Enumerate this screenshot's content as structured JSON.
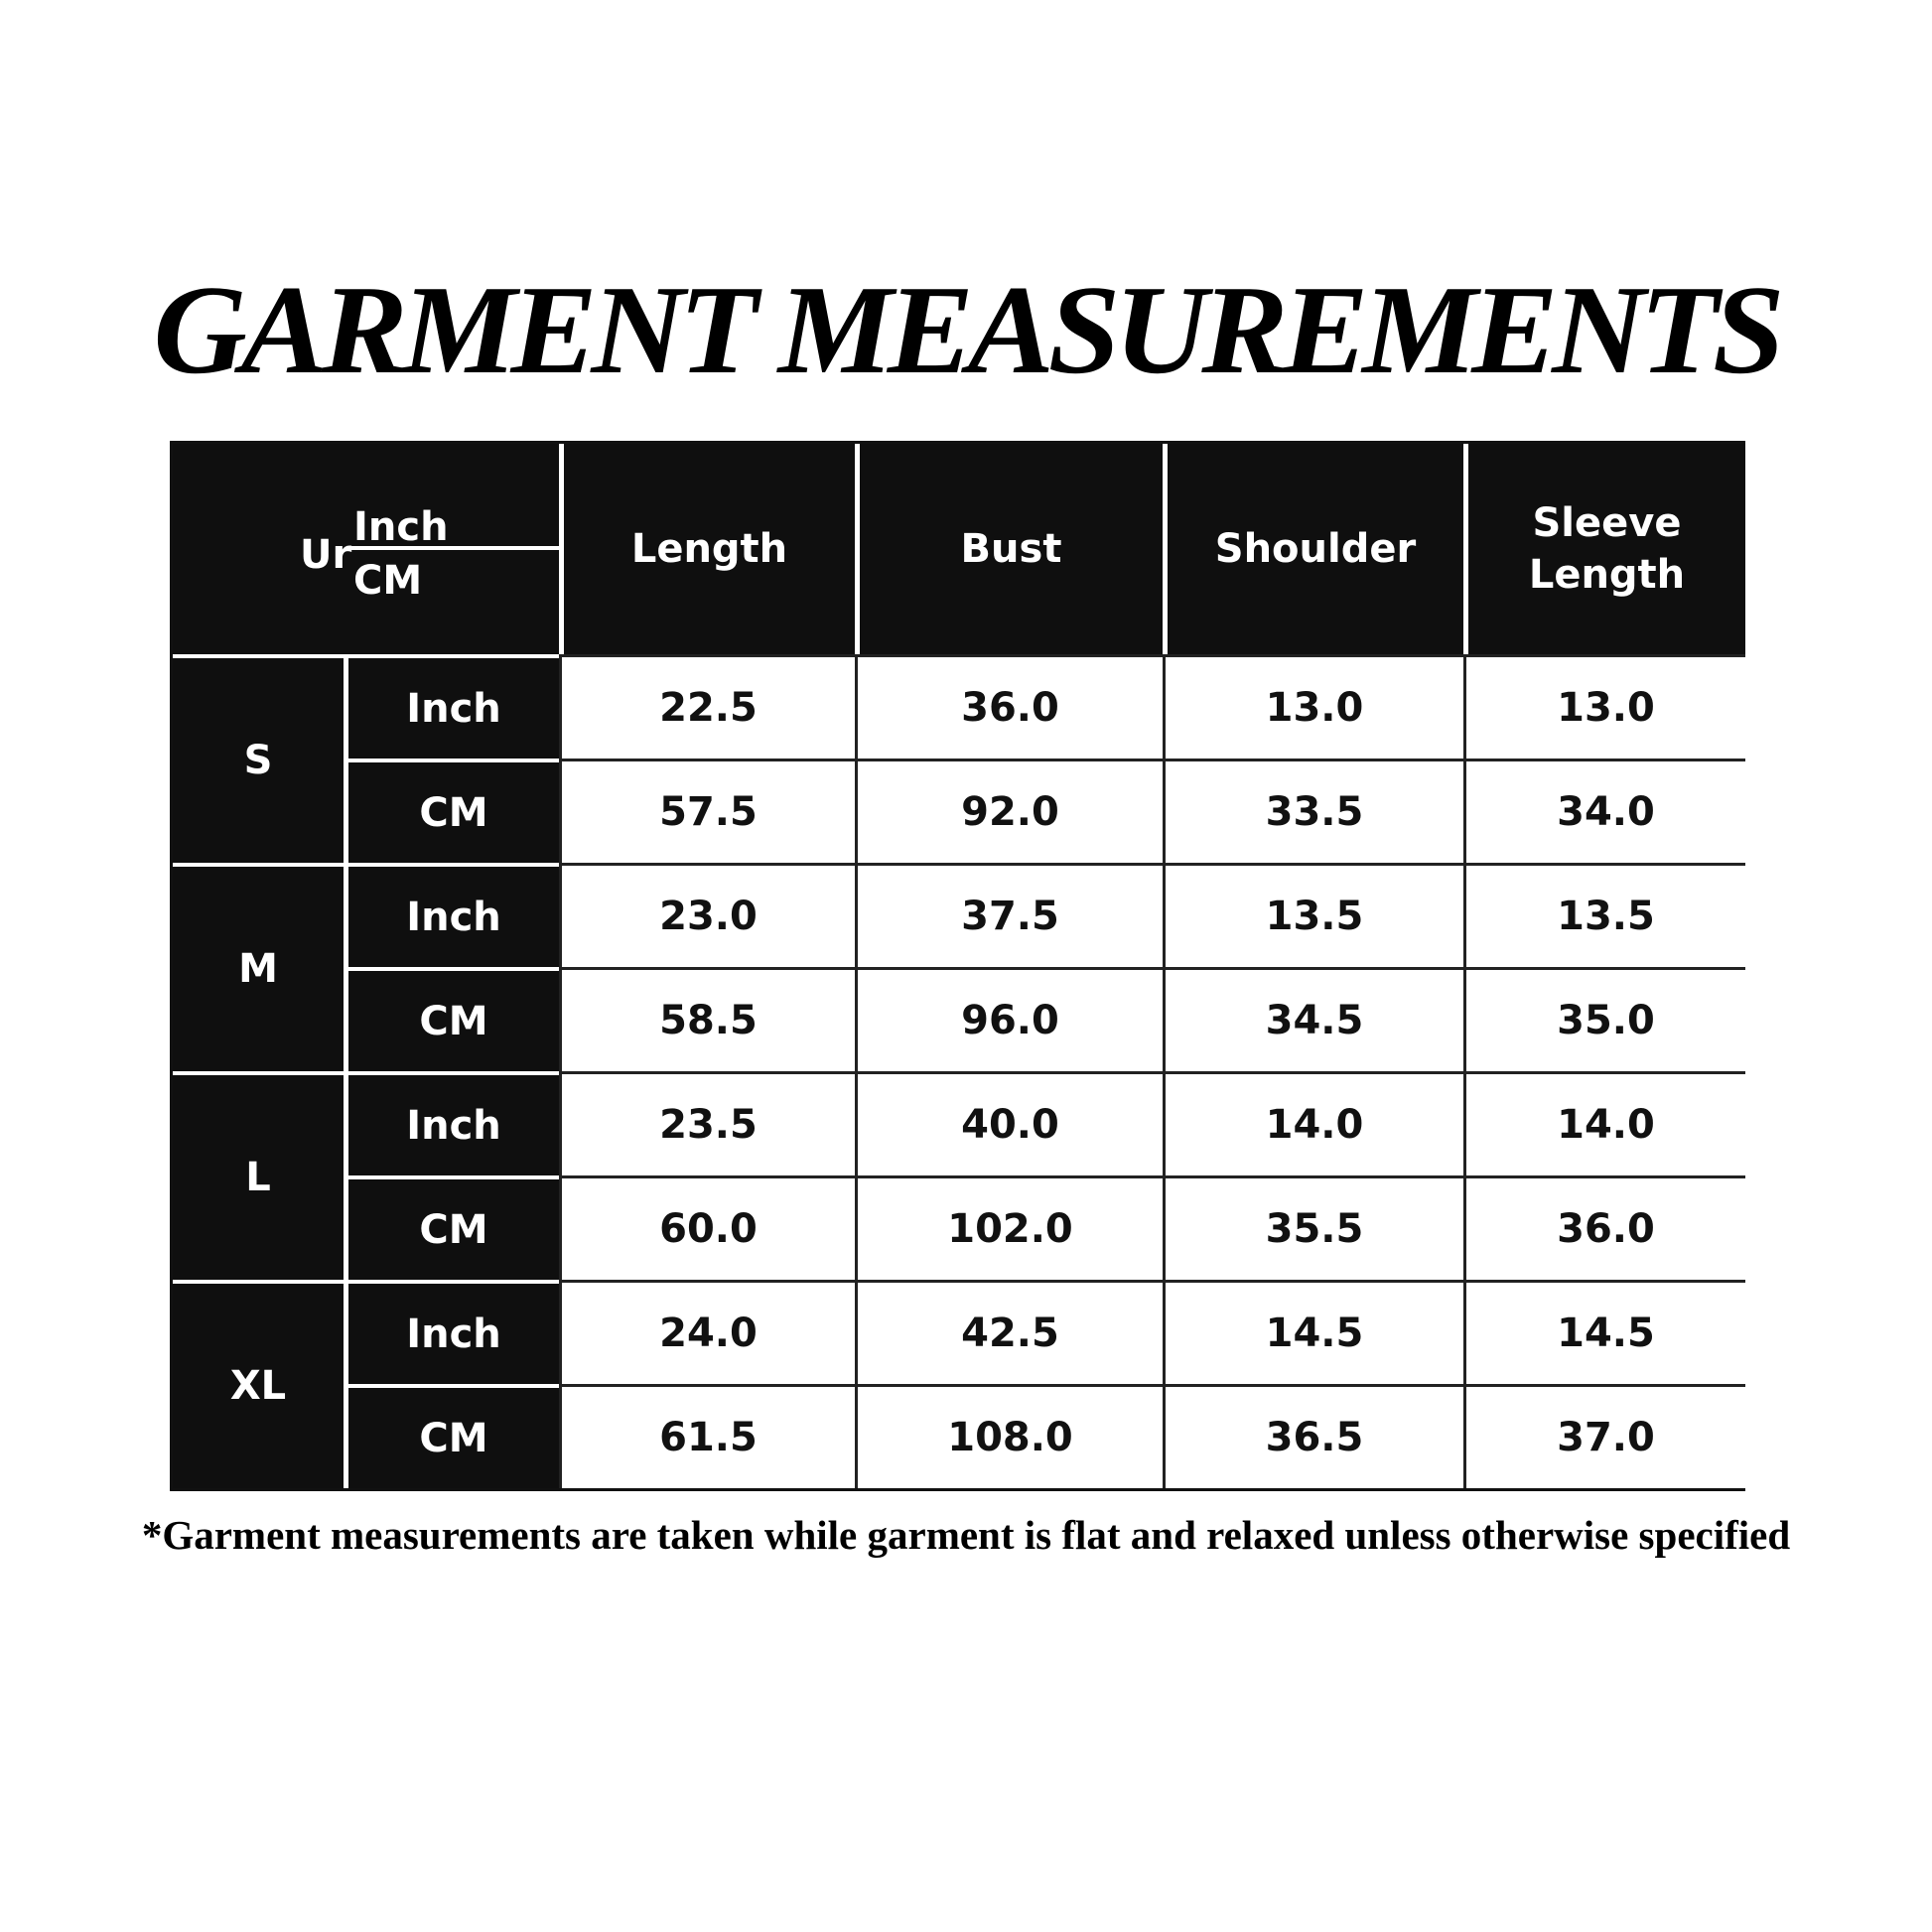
{
  "title": "GARMENT MEASUREMENTS",
  "table": {
    "corner": {
      "label": "Ur",
      "unit_top": "Inch",
      "unit_bottom": "CM"
    },
    "columns": [
      "Length",
      "Bust",
      "Shoulder",
      "Sleeve Length"
    ],
    "rows": [
      {
        "size": "S",
        "inch": [
          "22.5",
          "36.0",
          "13.0",
          "13.0"
        ],
        "cm": [
          "57.5",
          "92.0",
          "33.5",
          "34.0"
        ]
      },
      {
        "size": "M",
        "inch": [
          "23.0",
          "37.5",
          "13.5",
          "13.5"
        ],
        "cm": [
          "58.5",
          "96.0",
          "34.5",
          "35.0"
        ]
      },
      {
        "size": "L",
        "inch": [
          "23.5",
          "40.0",
          "14.0",
          "14.0"
        ],
        "cm": [
          "60.0",
          "102.0",
          "35.5",
          "36.0"
        ]
      },
      {
        "size": "XL",
        "inch": [
          "24.0",
          "42.5",
          "14.5",
          "14.5"
        ],
        "cm": [
          "61.5",
          "108.0",
          "36.5",
          "37.0"
        ]
      }
    ],
    "unit_inch": "Inch",
    "unit_cm": "CM"
  },
  "footnote": "*Garment measurements are taken while garment is flat and relaxed unless otherwise specified"
}
